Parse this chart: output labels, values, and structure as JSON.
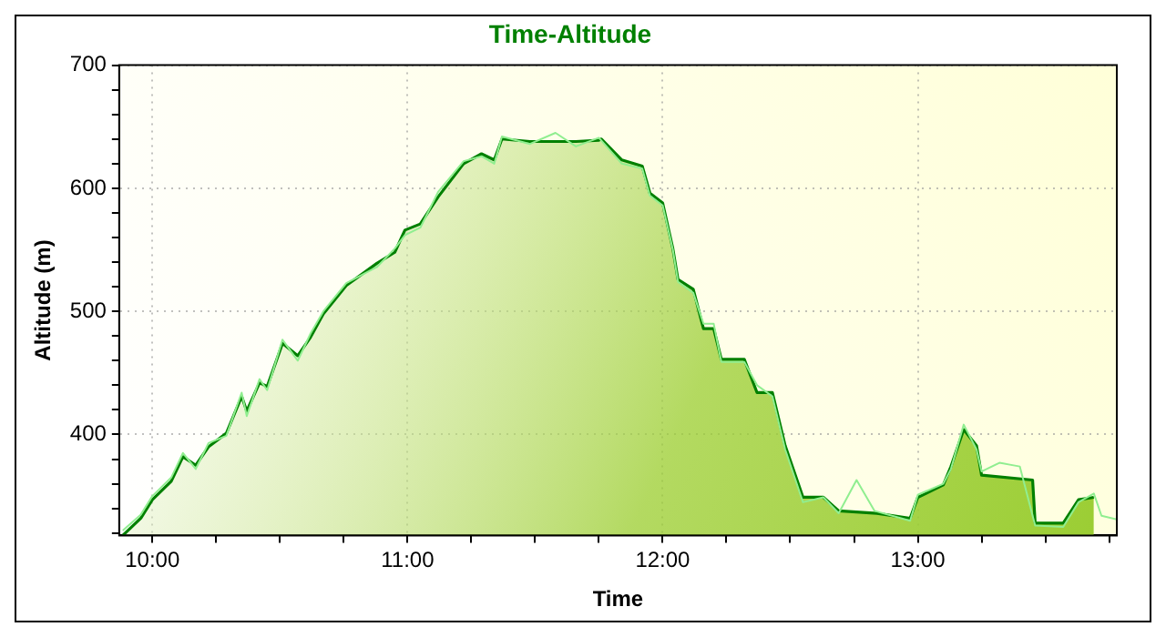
{
  "chart_data": {
    "type": "area",
    "title": "Time-Altitude",
    "xlabel": "Time",
    "ylabel": "Altitude (m)",
    "xlim": [
      9.87,
      13.78
    ],
    "xticks": [
      {
        "value": 10,
        "label": "10:00"
      },
      {
        "value": 10.25,
        "label": null
      },
      {
        "value": 10.5,
        "label": null
      },
      {
        "value": 10.75,
        "label": null
      },
      {
        "value": 11,
        "label": "11:00"
      },
      {
        "value": 11.25,
        "label": null
      },
      {
        "value": 11.5,
        "label": null
      },
      {
        "value": 11.75,
        "label": null
      },
      {
        "value": 12,
        "label": "12:00"
      },
      {
        "value": 12.25,
        "label": null
      },
      {
        "value": 12.5,
        "label": null
      },
      {
        "value": 12.75,
        "label": null
      },
      {
        "value": 13,
        "label": "13:00"
      },
      {
        "value": 13.25,
        "label": null
      },
      {
        "value": 13.5,
        "label": null
      },
      {
        "value": 13.75,
        "label": null
      }
    ],
    "ylim": [
      318,
      700
    ],
    "yticks": [
      {
        "value": 320,
        "label": null
      },
      {
        "value": 340,
        "label": null
      },
      {
        "value": 360,
        "label": null
      },
      {
        "value": 380,
        "label": null
      },
      400,
      {
        "value": 420,
        "label": null
      },
      {
        "value": 440,
        "label": null
      },
      {
        "value": 460,
        "label": null
      },
      {
        "value": 480,
        "label": null
      },
      500,
      {
        "value": 520,
        "label": null
      },
      {
        "value": 540,
        "label": null
      },
      {
        "value": 560,
        "label": null
      },
      {
        "value": 580,
        "label": null
      },
      600,
      {
        "value": 620,
        "label": null
      },
      {
        "value": 640,
        "label": null
      },
      {
        "value": 660,
        "label": null
      },
      {
        "value": 680,
        "label": null
      },
      700
    ],
    "grid": true,
    "legend": false,
    "marker": "none",
    "line_style": "solid",
    "series": [
      {
        "type": "line",
        "color": "#90ee90",
        "x": [
          9.884,
          9.955,
          10.0,
          10.074,
          10.12,
          10.17,
          10.22,
          10.29,
          10.35,
          10.37,
          10.42,
          10.45,
          10.51,
          10.57,
          10.62,
          10.67,
          10.76,
          10.88,
          10.95,
          10.99,
          11.05,
          11.12,
          11.22,
          11.29,
          11.34,
          11.37,
          11.48,
          11.58,
          11.66,
          11.75,
          11.84,
          11.92,
          11.95,
          12.0,
          12.04,
          12.06,
          12.12,
          12.16,
          12.2,
          12.23,
          12.32,
          12.37,
          12.43,
          12.48,
          12.55,
          12.63,
          12.69,
          12.76,
          12.83,
          12.97,
          13.0,
          13.1,
          13.13,
          13.18,
          13.23,
          13.25,
          13.32,
          13.4,
          13.46,
          13.57,
          13.63,
          13.69,
          13.72,
          13.78
        ],
        "values": [
          322,
          335,
          350,
          365,
          385,
          372,
          393,
          399,
          434,
          415,
          445,
          436,
          477,
          460,
          482,
          500,
          523,
          536,
          551,
          562,
          568,
          597,
          622,
          626,
          620,
          642,
          636,
          645,
          634,
          641,
          620,
          616,
          594,
          586,
          550,
          524,
          515,
          490,
          490,
          459,
          459,
          440,
          431,
          388,
          345,
          349,
          336,
          363,
          338,
          330,
          351,
          360,
          372,
          408,
          388,
          370,
          377,
          374,
          326,
          325,
          345,
          352,
          334,
          331
        ]
      },
      {
        "color": "#008000",
        "x": [
          9.884,
          9.955,
          10.0,
          10.074,
          10.12,
          10.17,
          10.22,
          10.29,
          10.35,
          10.37,
          10.42,
          10.45,
          10.51,
          10.57,
          10.62,
          10.67,
          10.76,
          10.88,
          10.95,
          10.99,
          11.05,
          11.12,
          11.22,
          11.29,
          11.34,
          11.37,
          11.48,
          11.66,
          11.75,
          11.76,
          11.84,
          11.92,
          11.95,
          12.0,
          12.04,
          12.06,
          12.12,
          12.16,
          12.2,
          12.23,
          12.32,
          12.37,
          12.43,
          12.48,
          12.55,
          12.63,
          12.69,
          12.84,
          12.97,
          13.0,
          13.1,
          13.13,
          13.18,
          13.23,
          13.25,
          13.45,
          13.46,
          13.57,
          13.63,
          13.69
        ],
        "values": [
          318,
          332,
          347,
          362,
          382,
          375,
          390,
          401,
          431,
          419,
          442,
          439,
          474,
          464,
          479,
          498,
          521,
          539,
          548,
          566,
          571,
          593,
          620,
          628,
          623,
          640,
          638,
          638,
          639,
          640,
          623,
          618,
          596,
          588,
          551,
          526,
          518,
          486,
          486,
          461,
          461,
          434,
          434,
          391,
          349,
          349,
          338,
          336,
          332,
          349,
          359,
          374,
          404,
          391,
          367,
          363,
          328,
          328,
          347,
          349
        ]
      }
    ]
  }
}
